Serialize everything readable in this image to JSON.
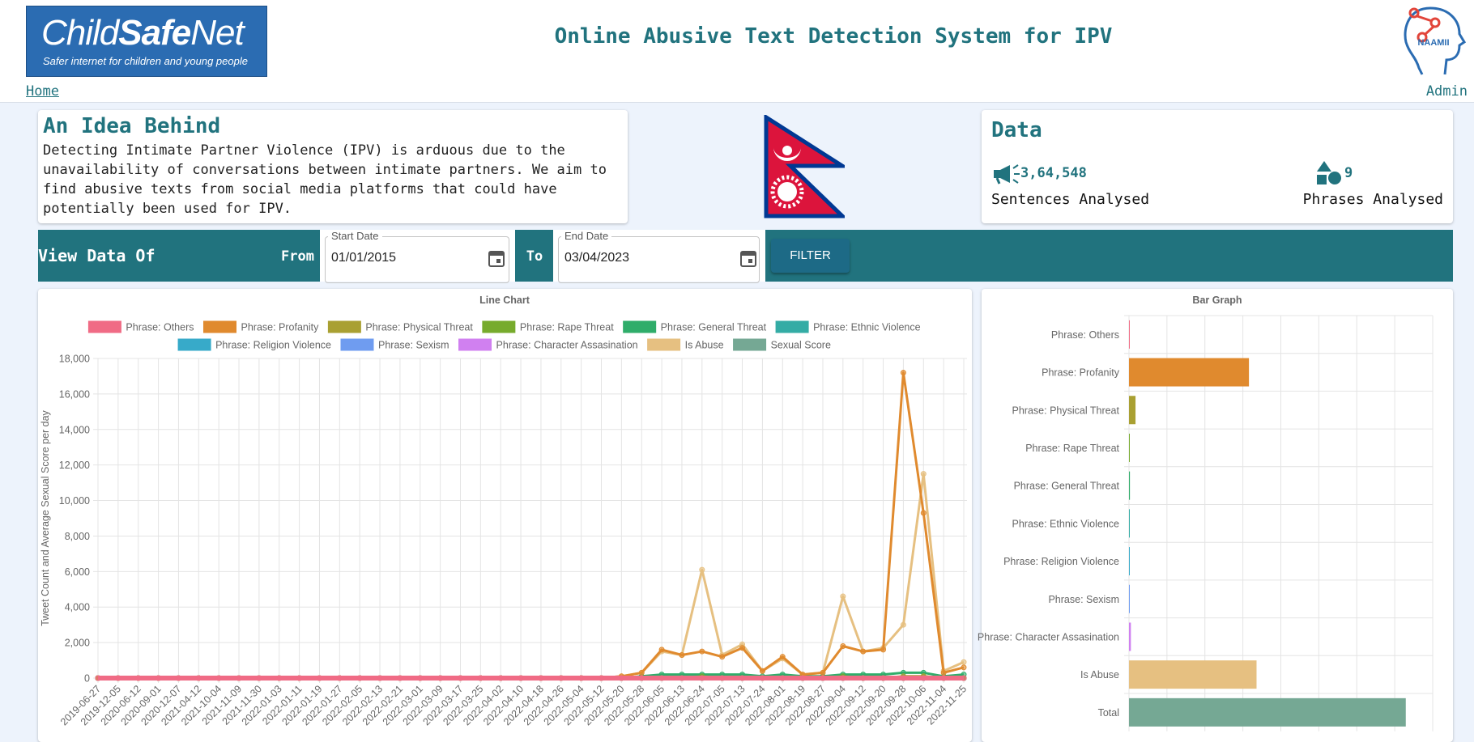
{
  "header": {
    "logo_child": "Child",
    "logo_safe": "Safe",
    "logo_net": "Net",
    "logo_tagline": "Safer internet for children and young people",
    "title": "Online Abusive Text Detection System for IPV",
    "home": "Home",
    "admin": "Admin",
    "partner_logo": "NAAMII"
  },
  "idea": {
    "title": "An Idea Behind",
    "text": "Detecting Intimate Partner Violence (IPV) is arduous due to the unavailability of conversations between intimate partners. We aim to find abusive texts from social media platforms that could have potentially been used for IPV."
  },
  "data_card": {
    "title": "Data",
    "sentences_count": "3,64,548",
    "sentences_label": "Sentences Analysed",
    "phrases_count": "9",
    "phrases_label": "Phrases Analysed"
  },
  "filter": {
    "view_label": "View Data Of",
    "from_label": "From",
    "start_label": "Start Date",
    "start_value": "01/01/2015",
    "to_label": "To",
    "end_label": "End Date",
    "end_value": "03/04/2023",
    "button": "FILTER"
  },
  "chart_data": [
    {
      "type": "line",
      "title": "Line Chart",
      "y_label": "Tweet Count and Average Sexual Score per day",
      "categories": [
        "2019-06-27",
        "2019-12-05",
        "2020-06-12",
        "2020-09-01",
        "2020-12-07",
        "2021-04-12",
        "2021-10-04",
        "2021-11-09",
        "2021-11-30",
        "2022-01-03",
        "2022-01-11",
        "2022-01-19",
        "2022-01-27",
        "2022-02-05",
        "2022-02-13",
        "2022-02-21",
        "2022-03-01",
        "2022-03-09",
        "2022-03-17",
        "2022-03-25",
        "2022-04-02",
        "2022-04-10",
        "2022-04-18",
        "2022-04-26",
        "2022-05-04",
        "2022-05-12",
        "2022-05-20",
        "2022-05-28",
        "2022-06-05",
        "2022-06-13",
        "2022-06-24",
        "2022-07-05",
        "2022-07-13",
        "2022-07-24",
        "2022-08-01",
        "2022-08-19",
        "2022-08-27",
        "2022-09-04",
        "2022-09-12",
        "2022-09-20",
        "2022-09-28",
        "2022-10-06",
        "2022-11-04",
        "2022-11-25"
      ],
      "ylim": [
        0,
        18000
      ],
      "yticks": [
        0,
        {
          "value": 2000,
          "label": "2,000"
        },
        {
          "value": 4000,
          "label": "4,000"
        },
        {
          "value": 6000,
          "label": "6,000"
        },
        {
          "value": 8000,
          "label": "8,000"
        },
        {
          "value": 10000,
          "label": "10,000"
        },
        {
          "value": 12000,
          "label": "12,000"
        },
        {
          "value": 14000,
          "label": "14,000"
        },
        {
          "value": 16000,
          "label": "16,000"
        },
        {
          "value": 18000,
          "label": "18,000"
        }
      ],
      "grid": true,
      "series": [
        {
          "name": "Phrase: Others",
          "color": "#f06b85",
          "values": [
            0,
            0,
            0,
            0,
            0,
            0,
            0,
            0,
            0,
            0,
            0,
            0,
            0,
            0,
            0,
            0,
            0,
            0,
            0,
            0,
            0,
            0,
            0,
            0,
            0,
            0,
            0,
            0,
            0,
            0,
            0,
            0,
            0,
            0,
            0,
            0,
            0,
            0,
            0,
            0,
            0,
            0,
            0,
            0
          ]
        },
        {
          "name": "Phrase: Profanity",
          "color": "#e08a2e",
          "values": [
            0,
            0,
            0,
            0,
            0,
            0,
            0,
            0,
            0,
            0,
            0,
            0,
            0,
            0,
            0,
            0,
            0,
            0,
            0,
            0,
            0,
            0,
            0,
            0,
            0,
            0,
            100,
            300,
            1600,
            1300,
            1500,
            1200,
            1700,
            400,
            1200,
            200,
            300,
            1800,
            1500,
            1600,
            17200,
            9300,
            300,
            600
          ]
        },
        {
          "name": "Phrase: Physical Threat",
          "color": "#a9a032",
          "values": [
            0,
            0,
            0,
            0,
            0,
            0,
            0,
            0,
            0,
            0,
            0,
            0,
            0,
            0,
            0,
            0,
            0,
            0,
            0,
            0,
            0,
            0,
            0,
            0,
            0,
            0,
            0,
            0,
            0,
            0,
            0,
            0,
            0,
            0,
            0,
            0,
            0,
            0,
            0,
            0,
            100,
            100,
            0,
            0
          ]
        },
        {
          "name": "Phrase: Rape Threat",
          "color": "#77ab2d",
          "values": [
            0,
            0,
            0,
            0,
            0,
            0,
            0,
            0,
            0,
            0,
            0,
            0,
            0,
            0,
            0,
            0,
            0,
            0,
            0,
            0,
            0,
            0,
            0,
            0,
            0,
            0,
            0,
            0,
            0,
            0,
            100,
            0,
            0,
            0,
            0,
            0,
            0,
            100,
            0,
            0,
            0,
            100,
            0,
            0
          ]
        },
        {
          "name": "Phrase: General Threat",
          "color": "#2fad6a",
          "values": [
            0,
            0,
            0,
            0,
            0,
            0,
            0,
            0,
            0,
            0,
            0,
            0,
            0,
            0,
            0,
            0,
            0,
            0,
            0,
            0,
            0,
            0,
            0,
            0,
            0,
            0,
            0,
            100,
            200,
            200,
            200,
            200,
            200,
            100,
            200,
            100,
            100,
            200,
            200,
            200,
            300,
            300,
            100,
            200
          ]
        },
        {
          "name": "Phrase: Ethnic Violence",
          "color": "#34aca5",
          "values": [
            0,
            0,
            0,
            0,
            0,
            0,
            0,
            0,
            0,
            0,
            0,
            0,
            0,
            0,
            0,
            0,
            0,
            0,
            0,
            0,
            0,
            0,
            0,
            0,
            0,
            0,
            0,
            0,
            0,
            0,
            0,
            0,
            0,
            0,
            0,
            0,
            0,
            0,
            0,
            0,
            0,
            0,
            0,
            0
          ]
        },
        {
          "name": "Phrase: Religion Violence",
          "color": "#37aac9",
          "values": [
            0,
            0,
            0,
            0,
            0,
            0,
            0,
            0,
            0,
            0,
            0,
            0,
            0,
            0,
            0,
            0,
            0,
            0,
            0,
            0,
            0,
            0,
            0,
            0,
            0,
            0,
            0,
            0,
            0,
            0,
            0,
            0,
            0,
            0,
            0,
            0,
            0,
            0,
            0,
            0,
            0,
            0,
            0,
            0
          ]
        },
        {
          "name": "Phrase: Sexism",
          "color": "#6f9cf0",
          "values": [
            0,
            0,
            0,
            0,
            0,
            0,
            0,
            0,
            0,
            0,
            0,
            0,
            0,
            0,
            0,
            0,
            0,
            0,
            0,
            0,
            0,
            0,
            0,
            0,
            0,
            0,
            0,
            0,
            0,
            0,
            0,
            0,
            0,
            0,
            0,
            0,
            0,
            0,
            0,
            0,
            0,
            0,
            0,
            0
          ]
        },
        {
          "name": "Phrase: Character Assasination",
          "color": "#d080f0",
          "values": [
            0,
            0,
            0,
            0,
            0,
            0,
            0,
            0,
            0,
            0,
            0,
            0,
            0,
            0,
            0,
            0,
            0,
            0,
            0,
            0,
            0,
            0,
            0,
            0,
            0,
            0,
            0,
            0,
            0,
            0,
            0,
            0,
            0,
            0,
            0,
            0,
            0,
            0,
            0,
            0,
            0,
            0,
            0,
            0
          ]
        },
        {
          "name": "Is Abuse",
          "color": "#e6c081",
          "values": [
            0,
            0,
            0,
            0,
            0,
            0,
            0,
            0,
            0,
            0,
            0,
            0,
            0,
            0,
            0,
            0,
            0,
            0,
            0,
            0,
            0,
            0,
            0,
            0,
            0,
            0,
            100,
            300,
            1500,
            1300,
            6100,
            1300,
            1900,
            400,
            1100,
            200,
            300,
            4600,
            1500,
            1700,
            3000,
            11500,
            400,
            900
          ]
        },
        {
          "name": "Sexual Score",
          "color": "#75a894",
          "values": [
            0,
            0,
            0,
            0,
            0,
            0,
            0,
            0,
            0,
            0,
            0,
            0,
            0,
            0,
            0,
            0,
            0,
            0,
            0,
            0,
            0,
            0,
            0,
            0,
            0,
            0,
            0,
            0,
            0,
            0,
            0,
            0,
            0,
            0,
            0,
            0,
            0,
            0,
            0,
            0,
            0,
            0,
            0,
            0
          ]
        }
      ]
    },
    {
      "type": "bar",
      "orientation": "horizontal",
      "title": "Bar Graph",
      "categories": [
        "Phrase: Others",
        "Phrase: Profanity",
        "Phrase: Physical Threat",
        "Phrase: Rape Threat",
        "Phrase: General Threat",
        "Phrase: Ethnic Violence",
        "Phrase: Religion Violence",
        "Phrase: Sexism",
        "Phrase: Character Assasination",
        "Is Abuse",
        "Total"
      ],
      "values": [
        500,
        158000,
        8600,
        300,
        1200,
        300,
        400,
        200,
        2500,
        168000,
        364548
      ],
      "colors": [
        "#f06b85",
        "#e08a2e",
        "#a9a032",
        "#77ab2d",
        "#2fad6a",
        "#34aca5",
        "#37aac9",
        "#6f9cf0",
        "#d080f0",
        "#e6c081",
        "#75a894"
      ],
      "xlim": [
        0,
        400000
      ],
      "xticks": [
        0,
        50000,
        100000,
        150000,
        200000,
        250000,
        300000,
        350000,
        400000
      ],
      "grid": true
    }
  ]
}
